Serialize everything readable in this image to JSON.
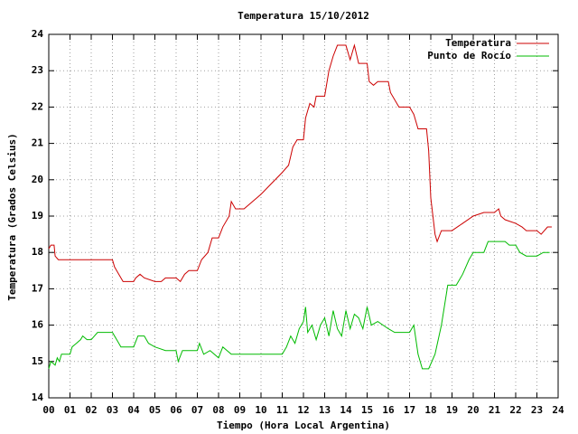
{
  "chart_data": {
    "type": "line",
    "title": "Temperatura 15/10/2012",
    "x_label": "Tiempo (Hora Local Argentina)",
    "y_label": "Temperatura (Grados Celsius)",
    "xlim": [
      0,
      24
    ],
    "ylim": [
      14,
      24
    ],
    "xticks": [
      {
        "value": 0,
        "label": "00"
      },
      {
        "value": 1,
        "label": "01"
      },
      {
        "value": 2,
        "label": "02"
      },
      {
        "value": 3,
        "label": "03"
      },
      {
        "value": 4,
        "label": "04"
      },
      {
        "value": 5,
        "label": "05"
      },
      {
        "value": 6,
        "label": "06"
      },
      {
        "value": 7,
        "label": "07"
      },
      {
        "value": 8,
        "label": "08"
      },
      {
        "value": 9,
        "label": "09"
      },
      10,
      11,
      12,
      13,
      14,
      15,
      16,
      17,
      18,
      19,
      20,
      21,
      22,
      23,
      24
    ],
    "yticks": [
      14,
      15,
      16,
      17,
      18,
      19,
      20,
      21,
      22,
      23,
      24
    ],
    "grid": true,
    "legend": "top-right",
    "series": [
      {
        "name": "Temperatura",
        "color": "#cc0000",
        "x": [
          0.0,
          0.1,
          0.25,
          0.3,
          0.45,
          1.0,
          1.5,
          2.0,
          2.3,
          3.0,
          3.1,
          3.3,
          3.5,
          4.0,
          4.1,
          4.3,
          4.5,
          5.0,
          5.3,
          5.5,
          6.0,
          6.2,
          6.4,
          6.6,
          7.0,
          7.2,
          7.5,
          7.7,
          8.0,
          8.2,
          8.5,
          8.6,
          8.8,
          9.2,
          10.0,
          11.0,
          11.3,
          11.5,
          11.7,
          12.0,
          12.1,
          12.3,
          12.5,
          12.6,
          13.0,
          13.2,
          13.4,
          13.6,
          14.0,
          14.2,
          14.4,
          14.6,
          15.0,
          15.1,
          15.3,
          15.5,
          16.0,
          16.1,
          16.5,
          17.0,
          17.2,
          17.4,
          17.8,
          17.9,
          18.0,
          18.2,
          18.3,
          18.5,
          19.0,
          19.5,
          20.0,
          20.5,
          21.0,
          21.2,
          21.3,
          21.5,
          22.0,
          22.3,
          22.5,
          23.0,
          23.2,
          23.5,
          23.7
        ],
        "values": [
          18.1,
          18.2,
          18.2,
          17.9,
          17.8,
          17.8,
          17.8,
          17.8,
          17.8,
          17.8,
          17.6,
          17.4,
          17.2,
          17.2,
          17.3,
          17.4,
          17.3,
          17.2,
          17.2,
          17.3,
          17.3,
          17.2,
          17.4,
          17.5,
          17.5,
          17.8,
          18.0,
          18.4,
          18.4,
          18.7,
          19.0,
          19.4,
          19.2,
          19.2,
          19.6,
          20.2,
          20.4,
          20.9,
          21.1,
          21.1,
          21.7,
          22.1,
          22.0,
          22.3,
          22.3,
          23.0,
          23.4,
          23.7,
          23.7,
          23.3,
          23.7,
          23.2,
          23.2,
          22.7,
          22.6,
          22.7,
          22.7,
          22.4,
          22.0,
          22.0,
          21.8,
          21.4,
          21.4,
          20.8,
          19.5,
          18.5,
          18.3,
          18.6,
          18.6,
          18.8,
          19.0,
          19.1,
          19.1,
          19.2,
          19.0,
          18.9,
          18.8,
          18.7,
          18.6,
          18.6,
          18.5,
          18.7,
          18.7
        ]
      },
      {
        "name": "Punto de Rocío",
        "color": "#00bb00",
        "x": [
          0.0,
          0.1,
          0.3,
          0.4,
          0.5,
          0.6,
          1.0,
          1.1,
          1.3,
          1.5,
          1.6,
          1.8,
          2.0,
          2.3,
          3.0,
          3.2,
          3.4,
          3.6,
          4.0,
          4.2,
          4.5,
          4.7,
          5.0,
          5.5,
          6.0,
          6.1,
          6.3,
          7.0,
          7.1,
          7.3,
          7.6,
          8.0,
          8.2,
          8.4,
          8.6,
          9.0,
          10.0,
          11.0,
          11.2,
          11.4,
          11.6,
          11.8,
          12.0,
          12.1,
          12.2,
          12.4,
          12.6,
          12.8,
          13.0,
          13.2,
          13.4,
          13.6,
          13.8,
          14.0,
          14.2,
          14.4,
          14.6,
          14.8,
          15.0,
          15.2,
          15.5,
          16.0,
          16.3,
          17.0,
          17.2,
          17.4,
          17.6,
          17.9,
          18.2,
          18.5,
          18.8,
          19.2,
          19.5,
          19.8,
          20.0,
          20.5,
          20.7,
          21.0,
          21.5,
          21.7,
          22.0,
          22.2,
          22.5,
          23.0,
          23.3,
          23.6
        ],
        "values": [
          14.8,
          15.0,
          14.9,
          15.1,
          15.0,
          15.2,
          15.2,
          15.4,
          15.5,
          15.6,
          15.7,
          15.6,
          15.6,
          15.8,
          15.8,
          15.6,
          15.4,
          15.4,
          15.4,
          15.7,
          15.7,
          15.5,
          15.4,
          15.3,
          15.3,
          15.0,
          15.3,
          15.3,
          15.5,
          15.2,
          15.3,
          15.1,
          15.4,
          15.3,
          15.2,
          15.2,
          15.2,
          15.2,
          15.4,
          15.7,
          15.5,
          15.9,
          16.1,
          16.5,
          15.8,
          16.0,
          15.6,
          16.0,
          16.2,
          15.7,
          16.4,
          15.9,
          15.7,
          16.4,
          15.9,
          16.3,
          16.2,
          15.9,
          16.5,
          16.0,
          16.1,
          15.9,
          15.8,
          15.8,
          16.0,
          15.2,
          14.8,
          14.8,
          15.2,
          16.0,
          17.1,
          17.1,
          17.4,
          17.8,
          18.0,
          18.0,
          18.3,
          18.3,
          18.3,
          18.2,
          18.2,
          18.0,
          17.9,
          17.9,
          18.0,
          18.0
        ]
      }
    ]
  }
}
